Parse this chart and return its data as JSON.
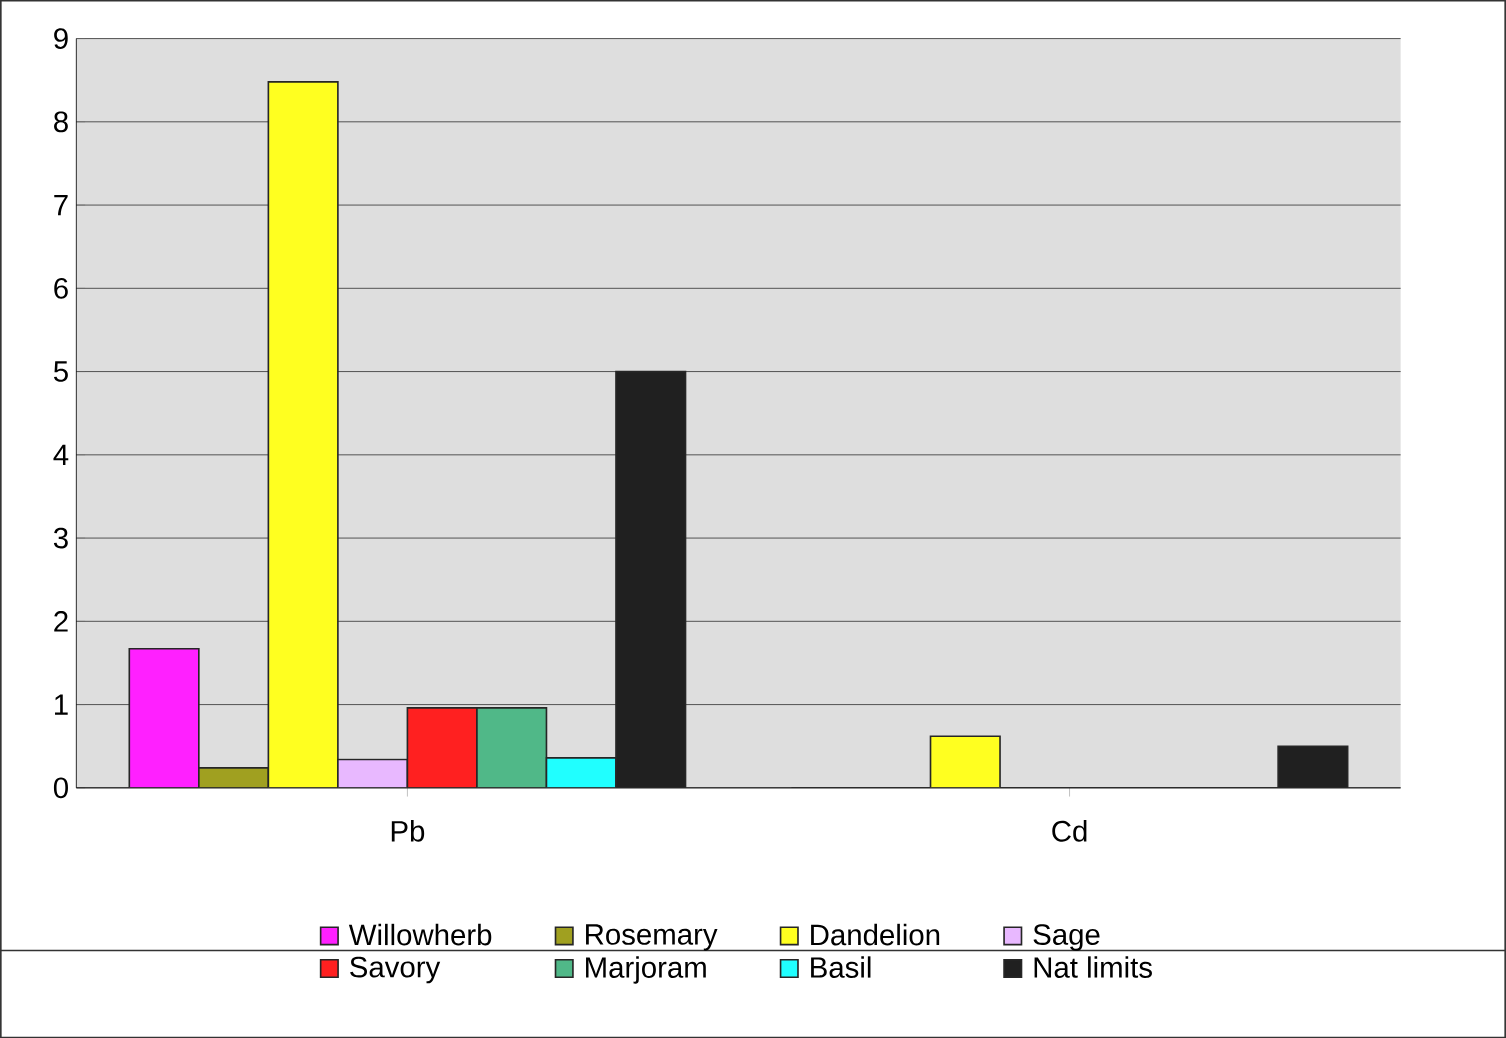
{
  "chart_data": {
    "type": "bar",
    "categories": [
      "Pb",
      "Cd"
    ],
    "series": [
      {
        "name": "Willowherb",
        "color": "#ff20ff",
        "values": [
          1.67,
          0
        ]
      },
      {
        "name": "Rosemary",
        "color": "#a0a020",
        "values": [
          0.24,
          0
        ]
      },
      {
        "name": "Dandelion",
        "color": "#ffff20",
        "values": [
          8.48,
          0.62
        ]
      },
      {
        "name": "Sage",
        "color": "#e8b8ff",
        "values": [
          0.34,
          0
        ]
      },
      {
        "name": "Savory",
        "color": "#ff2020",
        "values": [
          0.96,
          0
        ]
      },
      {
        "name": "Marjoram",
        "color": "#50b888",
        "values": [
          0.96,
          0
        ]
      },
      {
        "name": "Basil",
        "color": "#20ffff",
        "values": [
          0.36,
          0
        ]
      },
      {
        "name": "Nat limits",
        "color": "#202020",
        "values": [
          5,
          0.5
        ]
      }
    ],
    "ylim": [
      0,
      9
    ],
    "yticks": [
      0,
      1,
      2,
      3,
      4,
      5,
      6,
      7,
      8,
      9
    ],
    "grid": "y",
    "legend": "bottom"
  }
}
